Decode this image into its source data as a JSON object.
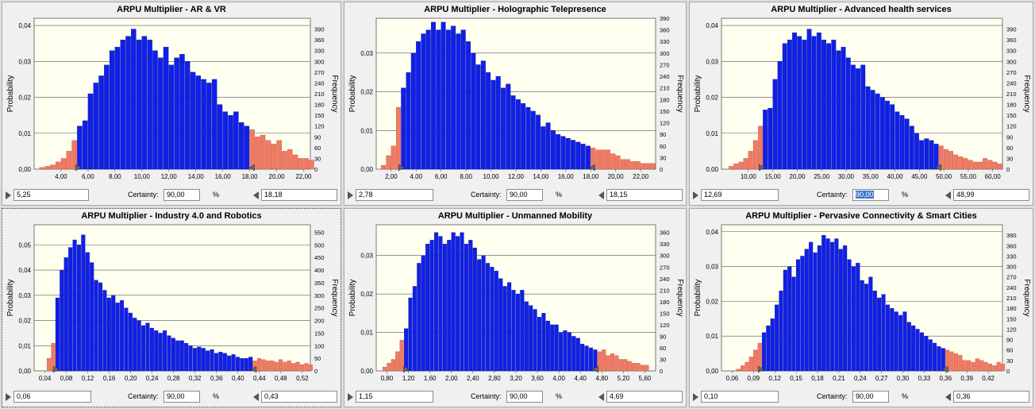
{
  "colors": {
    "center": "#1020e6",
    "tail": "#f07a62",
    "plot_bg": "#fffff0"
  },
  "labels": {
    "probability": "Probability",
    "frequency": "Frequency",
    "certainty": "Certainty:",
    "pct": "%"
  },
  "chart_data": [
    {
      "type": "bar",
      "title": "ARPU Multiplier - AR & VR",
      "ylabel": "Probability",
      "ylabel_right": "Frequency",
      "xlim": [
        2.0,
        22.5
      ],
      "x_ticks": [
        4.0,
        6.0,
        8.0,
        10.0,
        12.0,
        14.0,
        16.0,
        18.0,
        20.0,
        22.0
      ],
      "x_tick_labels": [
        "4,00",
        "6,00",
        "8,00",
        "10,00",
        "12,00",
        "14,00",
        "16,00",
        "18,00",
        "20,00",
        "22,00"
      ],
      "ylim": [
        0,
        0.042
      ],
      "y_ticks": [
        0,
        0.01,
        0.02,
        0.03,
        0.04
      ],
      "y_tick_labels": [
        "0,00",
        "0,01",
        "0,02",
        "0,03",
        "0,04"
      ],
      "freq_ticks": [
        0,
        30,
        60,
        90,
        120,
        150,
        180,
        210,
        240,
        270,
        300,
        330,
        360,
        390
      ],
      "left_value": "5,25",
      "right_value": "18,18",
      "certainty": "90,00",
      "lower": 5.25,
      "upper": 18.18,
      "selected": false,
      "certainty_highlight": false,
      "bins": {
        "start": 2.4,
        "width": 0.4,
        "values": [
          0.0005,
          0.0008,
          0.0012,
          0.002,
          0.003,
          0.005,
          0.008,
          0.012,
          0.0135,
          0.021,
          0.024,
          0.026,
          0.029,
          0.033,
          0.034,
          0.036,
          0.037,
          0.039,
          0.036,
          0.037,
          0.036,
          0.033,
          0.031,
          0.034,
          0.029,
          0.031,
          0.032,
          0.03,
          0.027,
          0.026,
          0.025,
          0.024,
          0.025,
          0.018,
          0.016,
          0.015,
          0.016,
          0.013,
          0.012,
          0.011,
          0.009,
          0.0095,
          0.008,
          0.007,
          0.008,
          0.005,
          0.0055,
          0.004,
          0.003,
          0.003,
          0.0025,
          0.0025,
          0.002,
          0.002,
          0.0015
        ]
      }
    },
    {
      "type": "bar",
      "title": "ARPU Multiplier - Holographic Telepresence",
      "ylabel": "Probability",
      "ylabel_right": "Frequency",
      "xlim": [
        0.8,
        23.2
      ],
      "x_ticks": [
        2.0,
        4.0,
        6.0,
        8.0,
        10.0,
        12.0,
        14.0,
        16.0,
        18.0,
        20.0,
        22.0
      ],
      "x_tick_labels": [
        "2,00",
        "4,00",
        "6,00",
        "8,00",
        "10,00",
        "12,00",
        "14,00",
        "16,00",
        "18,00",
        "20,00",
        "22,00"
      ],
      "ylim": [
        0,
        0.039
      ],
      "y_ticks": [
        0,
        0.01,
        0.02,
        0.03
      ],
      "y_tick_labels": [
        "0,00",
        "0,01",
        "0,02",
        "0,03"
      ],
      "freq_ticks": [
        0,
        30,
        60,
        90,
        120,
        150,
        180,
        210,
        240,
        270,
        300,
        330,
        360,
        390
      ],
      "left_value": "2,78",
      "right_value": "18,15",
      "certainty": "90,00",
      "lower": 2.78,
      "upper": 18.15,
      "selected": false,
      "certainty_highlight": false,
      "bins": {
        "start": 1.2,
        "width": 0.4,
        "values": [
          0.001,
          0.0035,
          0.006,
          0.016,
          0.021,
          0.025,
          0.03,
          0.033,
          0.035,
          0.036,
          0.038,
          0.036,
          0.038,
          0.036,
          0.037,
          0.035,
          0.036,
          0.033,
          0.03,
          0.027,
          0.028,
          0.025,
          0.023,
          0.024,
          0.021,
          0.022,
          0.019,
          0.018,
          0.017,
          0.016,
          0.015,
          0.014,
          0.011,
          0.012,
          0.01,
          0.009,
          0.0085,
          0.008,
          0.0075,
          0.007,
          0.0065,
          0.006,
          0.0055,
          0.005,
          0.005,
          0.005,
          0.004,
          0.0035,
          0.0025,
          0.0025,
          0.002,
          0.002,
          0.0015,
          0.0015,
          0.0015
        ]
      }
    },
    {
      "type": "bar",
      "title": "ARPU Multiplier - Advanced health services",
      "ylabel": "Probability",
      "ylabel_right": "Frequency",
      "xlim": [
        4.5,
        62.0
      ],
      "x_ticks": [
        10,
        15,
        20,
        25,
        30,
        35,
        40,
        45,
        50,
        55,
        60
      ],
      "x_tick_labels": [
        "10,00",
        "15,00",
        "20,00",
        "25,00",
        "30,00",
        "35,00",
        "40,00",
        "45,00",
        "50,00",
        "55,00",
        "60,00"
      ],
      "ylim": [
        0,
        0.042
      ],
      "y_ticks": [
        0,
        0.01,
        0.02,
        0.03,
        0.04
      ],
      "y_tick_labels": [
        "0,00",
        "0,01",
        "0,02",
        "0,03",
        "0,04"
      ],
      "freq_ticks": [
        0,
        30,
        60,
        90,
        120,
        150,
        180,
        210,
        240,
        270,
        300,
        330,
        360,
        390
      ],
      "left_value": "12,69",
      "right_value": "48,99",
      "certainty": "90,00",
      "lower": 12.69,
      "upper": 48.99,
      "selected": false,
      "certainty_highlight": true,
      "bins": {
        "start": 6.0,
        "width": 1.0,
        "values": [
          0.0008,
          0.0015,
          0.002,
          0.003,
          0.005,
          0.008,
          0.012,
          0.0165,
          0.017,
          0.025,
          0.03,
          0.035,
          0.036,
          0.038,
          0.037,
          0.036,
          0.039,
          0.037,
          0.038,
          0.036,
          0.035,
          0.036,
          0.033,
          0.034,
          0.031,
          0.029,
          0.028,
          0.029,
          0.023,
          0.022,
          0.021,
          0.02,
          0.019,
          0.018,
          0.016,
          0.015,
          0.014,
          0.012,
          0.01,
          0.008,
          0.0085,
          0.008,
          0.007,
          0.0065,
          0.0055,
          0.005,
          0.004,
          0.0035,
          0.003,
          0.0025,
          0.002,
          0.002,
          0.003,
          0.0025,
          0.002,
          0.0015
        ]
      }
    },
    {
      "type": "bar",
      "title": "ARPU Multiplier - Industry 4.0 and Robotics",
      "ylabel": "Probability",
      "ylabel_right": "Frequency",
      "xlim": [
        0.02,
        0.535
      ],
      "x_ticks": [
        0.04,
        0.08,
        0.12,
        0.16,
        0.2,
        0.24,
        0.28,
        0.32,
        0.36,
        0.4,
        0.44,
        0.48,
        0.52
      ],
      "x_tick_labels": [
        "0,04",
        "0,08",
        "0,12",
        "0,16",
        "0,20",
        "0,24",
        "0,28",
        "0,32",
        "0,36",
        "0,40",
        "0,44",
        "0,48",
        "0,52"
      ],
      "ylim": [
        0,
        0.058
      ],
      "y_ticks": [
        0,
        0.01,
        0.02,
        0.03,
        0.04,
        0.05
      ],
      "y_tick_labels": [
        "0,00",
        "0,01",
        "0,02",
        "0,03",
        "0,04",
        "0,05"
      ],
      "freq_ticks": [
        0,
        50,
        100,
        150,
        200,
        250,
        300,
        350,
        400,
        450,
        500,
        550
      ],
      "left_value": "0,06",
      "right_value": "0,43",
      "certainty": "90,00",
      "lower": 0.06,
      "upper": 0.43,
      "selected": true,
      "certainty_highlight": false,
      "bins": {
        "start": 0.044,
        "width": 0.008,
        "values": [
          0.005,
          0.011,
          0.029,
          0.04,
          0.045,
          0.049,
          0.052,
          0.05,
          0.054,
          0.047,
          0.043,
          0.036,
          0.035,
          0.032,
          0.029,
          0.03,
          0.027,
          0.028,
          0.025,
          0.023,
          0.021,
          0.02,
          0.018,
          0.019,
          0.017,
          0.016,
          0.015,
          0.016,
          0.014,
          0.013,
          0.012,
          0.012,
          0.011,
          0.01,
          0.009,
          0.0095,
          0.009,
          0.008,
          0.0085,
          0.007,
          0.0075,
          0.007,
          0.006,
          0.0065,
          0.0055,
          0.005,
          0.005,
          0.0055,
          0.004,
          0.005,
          0.0045,
          0.004,
          0.004,
          0.0035,
          0.0045,
          0.0035,
          0.004,
          0.003,
          0.0035,
          0.0025,
          0.003,
          0.0025
        ]
      }
    },
    {
      "type": "bar",
      "title": "ARPU Multiplier - Unmanned Mobility",
      "ylabel": "Probability",
      "ylabel_right": "Frequency",
      "xlim": [
        0.6,
        5.8
      ],
      "x_ticks": [
        0.8,
        1.2,
        1.6,
        2.0,
        2.4,
        2.8,
        3.2,
        3.6,
        4.0,
        4.4,
        4.8,
        5.2,
        5.6
      ],
      "x_tick_labels": [
        "0,80",
        "1,20",
        "1,60",
        "2,00",
        "2,40",
        "2,80",
        "3,20",
        "3,60",
        "4,00",
        "4,40",
        "4,80",
        "5,20",
        "5,60"
      ],
      "ylim": [
        0,
        0.038
      ],
      "y_ticks": [
        0,
        0.01,
        0.02,
        0.03
      ],
      "y_tick_labels": [
        "0,00",
        "0,01",
        "0,02",
        "0,03"
      ],
      "freq_ticks": [
        0,
        30,
        60,
        90,
        120,
        150,
        180,
        210,
        240,
        270,
        300,
        330,
        360
      ],
      "left_value": "1,15",
      "right_value": "4,69",
      "certainty": "90,00",
      "lower": 1.15,
      "upper": 4.69,
      "selected": false,
      "certainty_highlight": false,
      "bins": {
        "start": 0.72,
        "width": 0.08,
        "values": [
          0.001,
          0.002,
          0.003,
          0.005,
          0.008,
          0.011,
          0.019,
          0.022,
          0.028,
          0.03,
          0.033,
          0.034,
          0.036,
          0.035,
          0.033,
          0.034,
          0.036,
          0.035,
          0.036,
          0.033,
          0.034,
          0.032,
          0.029,
          0.03,
          0.028,
          0.027,
          0.026,
          0.024,
          0.022,
          0.023,
          0.021,
          0.02,
          0.021,
          0.018,
          0.017,
          0.016,
          0.014,
          0.015,
          0.013,
          0.012,
          0.012,
          0.01,
          0.0105,
          0.01,
          0.009,
          0.0085,
          0.007,
          0.0065,
          0.006,
          0.0055,
          0.005,
          0.0055,
          0.004,
          0.0045,
          0.004,
          0.003,
          0.003,
          0.0025,
          0.002,
          0.002,
          0.0015,
          0.0015
        ]
      }
    },
    {
      "type": "bar",
      "title": "ARPU Multiplier - Pervasive Connectivity & Smart Cities",
      "ylabel": "Probability",
      "ylabel_right": "Frequency",
      "xlim": [
        0.045,
        0.44
      ],
      "x_ticks": [
        0.06,
        0.09,
        0.12,
        0.15,
        0.18,
        0.21,
        0.24,
        0.27,
        0.3,
        0.33,
        0.36,
        0.39,
        0.42
      ],
      "x_tick_labels": [
        "0,06",
        "0,09",
        "0,12",
        "0,15",
        "0,18",
        "0,21",
        "0,24",
        "0,27",
        "0,30",
        "0,33",
        "0,36",
        "0,39",
        "0,42"
      ],
      "ylim": [
        0,
        0.042
      ],
      "y_ticks": [
        0,
        0.01,
        0.02,
        0.03,
        0.04
      ],
      "y_tick_labels": [
        "0,00",
        "0,01",
        "0,02",
        "0,03",
        "0,04"
      ],
      "freq_ticks": [
        0,
        30,
        60,
        90,
        120,
        150,
        180,
        210,
        240,
        270,
        300,
        330,
        360,
        390
      ],
      "left_value": "0,10",
      "right_value": "0,36",
      "certainty": "90,00",
      "lower": 0.1,
      "upper": 0.36,
      "selected": false,
      "certainty_highlight": false,
      "bins": {
        "start": 0.066,
        "width": 0.006,
        "values": [
          0.0005,
          0.0015,
          0.0025,
          0.004,
          0.006,
          0.008,
          0.011,
          0.013,
          0.015,
          0.019,
          0.023,
          0.029,
          0.03,
          0.027,
          0.032,
          0.033,
          0.035,
          0.037,
          0.034,
          0.036,
          0.039,
          0.038,
          0.037,
          0.038,
          0.035,
          0.036,
          0.032,
          0.03,
          0.031,
          0.026,
          0.025,
          0.027,
          0.023,
          0.021,
          0.022,
          0.019,
          0.018,
          0.017,
          0.016,
          0.017,
          0.014,
          0.013,
          0.012,
          0.011,
          0.01,
          0.009,
          0.008,
          0.007,
          0.0065,
          0.006,
          0.0055,
          0.005,
          0.0045,
          0.003,
          0.003,
          0.0025,
          0.0035,
          0.003,
          0.0025,
          0.002,
          0.0015,
          0.0025,
          0.002
        ]
      }
    }
  ]
}
